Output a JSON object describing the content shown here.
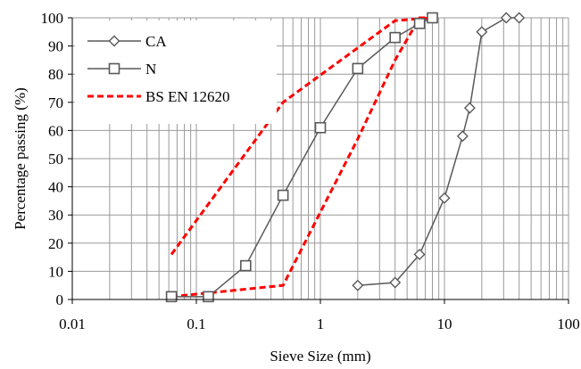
{
  "chart_data": {
    "type": "line",
    "x_scale": "log",
    "xlim": [
      0.01,
      100
    ],
    "ylim": [
      0,
      100
    ],
    "xlabel": "Sieve Size (mm)",
    "ylabel": "Percentage passing (%)",
    "x_ticks": [
      0.01,
      0.1,
      1,
      10,
      100
    ],
    "x_tick_labels": [
      "0.01",
      "0.1",
      "1",
      "10",
      "100"
    ],
    "y_ticks": [
      0,
      10,
      20,
      30,
      40,
      50,
      60,
      70,
      80,
      90,
      100
    ],
    "y_tick_labels": [
      "0",
      "10",
      "20",
      "30",
      "40",
      "50",
      "60",
      "70",
      "80",
      "90",
      "100"
    ],
    "grid": {
      "horizontal": "major",
      "vertical": "minor-log"
    },
    "legend": {
      "placement": "top-left",
      "entries": [
        "CA",
        "N",
        "BS EN 12620"
      ]
    },
    "series": [
      {
        "name": "CA",
        "marker": "diamond",
        "color": "#595959",
        "points": [
          [
            2,
            5
          ],
          [
            4,
            6
          ],
          [
            6.3,
            16
          ],
          [
            10,
            36
          ],
          [
            14,
            58
          ],
          [
            16,
            68
          ],
          [
            20,
            95
          ],
          [
            31.5,
            100
          ],
          [
            40,
            100
          ]
        ]
      },
      {
        "name": "N",
        "marker": "square",
        "color": "#595959",
        "points": [
          [
            0.063,
            1
          ],
          [
            0.125,
            1
          ],
          [
            0.25,
            12
          ],
          [
            0.5,
            37
          ],
          [
            1,
            61
          ],
          [
            2,
            82
          ],
          [
            4,
            93
          ],
          [
            6.3,
            98
          ],
          [
            8,
            100
          ]
        ]
      }
    ],
    "envelope": {
      "name": "BS EN 12620",
      "color": "#ff0000",
      "style": "dashed",
      "lines": [
        [
          [
            0.063,
            16
          ],
          [
            0.5,
            70
          ],
          [
            4,
            99
          ],
          [
            8,
            100
          ]
        ],
        [
          [
            0.063,
            1
          ],
          [
            0.5,
            5
          ],
          [
            2,
            57
          ],
          [
            4,
            85
          ],
          [
            6.3,
            100
          ],
          [
            8,
            100
          ]
        ]
      ]
    }
  }
}
